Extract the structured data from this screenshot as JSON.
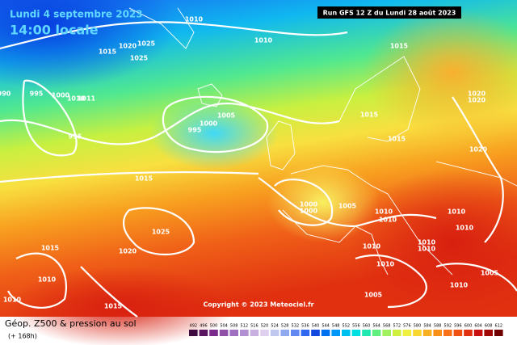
{
  "header": {
    "date": "Lundi 4 septembre 2023",
    "time": "14:00 locale",
    "run": "Run GFS 12 Z du Lundi 28 août 2023"
  },
  "copyright": "Copyright © 2023 Meteociel.fr",
  "footer": {
    "title": "Géop. Z500 & pression au sol",
    "lead": "(+ 168h)"
  },
  "isobar_labels": [
    1010,
    1015,
    1020,
    1025,
    1025,
    990,
    995,
    1000,
    1010,
    1011,
    995,
    1005,
    1000,
    995,
    1010,
    1015,
    1015,
    1015,
    1020,
    1020,
    1020,
    1015,
    1025,
    1020,
    1015,
    1010,
    1010,
    1015,
    1000,
    1000,
    1005,
    1010,
    1010,
    1010,
    1010,
    1010,
    1010,
    1010,
    1010,
    1005,
    1010,
    1005
  ],
  "scale": [
    {
      "label": 492,
      "color": "#3d0a3d"
    },
    {
      "label": 496,
      "color": "#5a1560"
    },
    {
      "label": 500,
      "color": "#7a2a8a"
    },
    {
      "label": 504,
      "color": "#9050a8"
    },
    {
      "label": 508,
      "color": "#a070c0"
    },
    {
      "label": 512,
      "color": "#b090d0"
    },
    {
      "label": 516,
      "color": "#c8b0e0"
    },
    {
      "label": 520,
      "color": "#e0d0f0"
    },
    {
      "label": 524,
      "color": "#c0c8f0"
    },
    {
      "label": 528,
      "color": "#90a8f0"
    },
    {
      "label": 532,
      "color": "#6088f0"
    },
    {
      "label": 536,
      "color": "#3068f0"
    },
    {
      "label": 540,
      "color": "#1048e0"
    },
    {
      "label": 544,
      "color": "#0070f0"
    },
    {
      "label": 548,
      "color": "#0098f8"
    },
    {
      "label": 552,
      "color": "#00c0f0"
    },
    {
      "label": 556,
      "color": "#00e0e0"
    },
    {
      "label": 560,
      "color": "#20e8b0"
    },
    {
      "label": 564,
      "color": "#60f080"
    },
    {
      "label": 568,
      "color": "#a0f060"
    },
    {
      "label": 572,
      "color": "#d0f040"
    },
    {
      "label": 576,
      "color": "#f0f040"
    },
    {
      "label": 580,
      "color": "#f8d830"
    },
    {
      "label": 584,
      "color": "#f8b020"
    },
    {
      "label": 588,
      "color": "#f89018"
    },
    {
      "label": 592,
      "color": "#f87018"
    },
    {
      "label": 596,
      "color": "#f05010"
    },
    {
      "label": 600,
      "color": "#e03010"
    },
    {
      "label": 604,
      "color": "#c81010"
    },
    {
      "label": 608,
      "color": "#a00808"
    },
    {
      "label": 612,
      "color": "#700000"
    }
  ]
}
